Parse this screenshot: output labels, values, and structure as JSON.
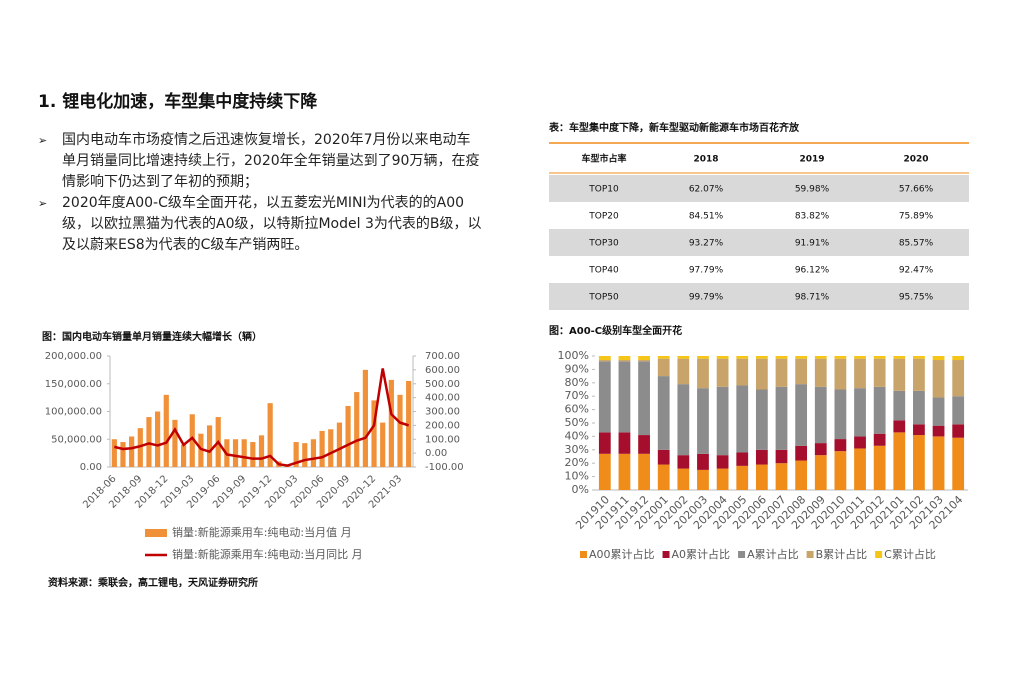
{
  "header": {
    "title": "1. 锂电化加速，车型集中度持续下降"
  },
  "bullets": [
    "国内电动车市场疫情之后迅速恢复增长，2020年7月份以来电动车单月销量同比增速持续上行，2020年全年销量达到了90万辆，在疫情影响下仍达到了年初的预期；",
    "2020年度A00-C级车全面开花，以五菱宏光MINI为代表的的A00级，以欧拉黑猫为代表的A0级，以特斯拉Model 3为代表的B级，以及以蔚来ES8为代表的C级车产销两旺。"
  ],
  "table": {
    "title": "表：车型集中度下降，新车型驱动新能源车市场百花齐放",
    "columns": [
      "车型市占率",
      "2018",
      "2019",
      "2020"
    ],
    "rows": [
      [
        "TOP10",
        "62.07%",
        "59.98%",
        "57.66%"
      ],
      [
        "TOP20",
        "84.51%",
        "83.82%",
        "75.89%"
      ],
      [
        "TOP30",
        "93.27%",
        "91.91%",
        "85.57%"
      ],
      [
        "TOP40",
        "97.79%",
        "96.12%",
        "92.47%"
      ],
      [
        "TOP50",
        "99.79%",
        "98.71%",
        "95.75%"
      ]
    ]
  },
  "chart_data": [
    {
      "type": "combo",
      "title": "图：国内电动车销量单月销量连续大幅增长（辆）",
      "categories": [
        "2018-06",
        null,
        null,
        "2018-09",
        null,
        null,
        "2018-12",
        null,
        null,
        "2019-03",
        null,
        null,
        "2019-06",
        null,
        null,
        "2019-09",
        null,
        null,
        "2019-12",
        null,
        null,
        "2020-03",
        null,
        null,
        "2020-06",
        null,
        null,
        "2020-09",
        null,
        null,
        "2020-12",
        null,
        null,
        "2021-03",
        null
      ],
      "series": [
        {
          "name": "销量:新能源乘用车:纯电动:当月值 月",
          "type": "bar",
          "color": "#f0913a",
          "values": [
            50000,
            45000,
            55000,
            70000,
            90000,
            100000,
            130000,
            85000,
            40000,
            95000,
            60000,
            75000,
            90000,
            50000,
            50000,
            50000,
            45000,
            57000,
            115000,
            10000,
            3000,
            45000,
            43000,
            50000,
            65000,
            68000,
            80000,
            110000,
            135000,
            175000,
            120000,
            80000,
            157000,
            130000,
            155000
          ]
        },
        {
          "name": "销量:新能源乘用车:纯电动:当月同比 月",
          "type": "line",
          "axis": "y2",
          "color": "#c00000",
          "values": [
            45,
            30,
            35,
            50,
            70,
            55,
            75,
            170,
            60,
            110,
            30,
            10,
            80,
            -10,
            -20,
            -30,
            -40,
            -40,
            -20,
            -80,
            -90,
            -70,
            -50,
            -40,
            -30,
            0,
            30,
            60,
            90,
            110,
            200,
            610,
            280,
            220,
            200
          ]
        }
      ],
      "ylim": [
        0,
        200000
      ],
      "yticks": [
        {
          "value": 0,
          "label": "0.00"
        },
        {
          "value": 50000,
          "label": "50,000.00"
        },
        {
          "value": 100000,
          "label": "100,000.00"
        },
        {
          "value": 150000,
          "label": "150,000.00"
        },
        {
          "value": 200000,
          "label": "200,000.00"
        }
      ],
      "y2lim": [
        -100,
        700
      ],
      "y2ticks": [
        {
          "value": -100,
          "label": "-100.00"
        },
        {
          "value": 0,
          "label": "0.00"
        },
        {
          "value": 100,
          "label": "100.00"
        },
        {
          "value": 200,
          "label": "200.00"
        },
        {
          "value": 300,
          "label": "300.00"
        },
        {
          "value": 400,
          "label": "400.00"
        },
        {
          "value": 500,
          "label": "500.00"
        },
        {
          "value": 600,
          "label": "600.00"
        },
        {
          "value": 700,
          "label": "700.00"
        }
      ]
    },
    {
      "type": "stacked_bar",
      "title": "图：A00-C级别车型全面开花",
      "categories": [
        "201910",
        "201911",
        "201912",
        "202001",
        "202002",
        "202003",
        "202004",
        "202005",
        "202006",
        "202007",
        "202008",
        "202009",
        "202010",
        "202011",
        "202012",
        "202101",
        "202102",
        "202103",
        "202104"
      ],
      "series": [
        {
          "name": "A00累计占比",
          "color": "#f08c1a",
          "values": [
            27,
            27,
            27,
            19,
            16,
            15,
            16,
            18,
            19,
            20,
            22,
            26,
            29,
            31,
            33,
            43,
            41,
            40,
            39
          ]
        },
        {
          "name": "A0累计占比",
          "color": "#a50f2d",
          "values": [
            16,
            16,
            14,
            11,
            10,
            12,
            10,
            10,
            11,
            10,
            11,
            9,
            9,
            9,
            9,
            9,
            8,
            8,
            10
          ]
        },
        {
          "name": "A累计占比",
          "color": "#8c8c8c",
          "values": [
            53,
            53,
            55,
            55,
            53,
            49,
            51,
            50,
            45,
            47,
            46,
            42,
            37,
            36,
            35,
            22,
            25,
            21,
            21
          ]
        },
        {
          "name": "B累计占比",
          "color": "#c9a46a",
          "values": [
            1,
            1,
            1,
            13,
            19,
            22,
            21,
            20,
            23,
            21,
            19,
            21,
            23,
            22,
            21,
            24,
            24,
            28,
            27
          ]
        },
        {
          "name": "C累计占比",
          "color": "#f5c518",
          "values": [
            3,
            3,
            3,
            2,
            2,
            2,
            2,
            2,
            2,
            2,
            2,
            2,
            2,
            2,
            2,
            2,
            2,
            3,
            3
          ]
        }
      ],
      "ylim": [
        0,
        100
      ],
      "yticks": [
        {
          "value": 0,
          "label": "0%"
        },
        {
          "value": 10,
          "label": "10%"
        },
        {
          "value": 20,
          "label": "20%"
        },
        {
          "value": 30,
          "label": "30%"
        },
        {
          "value": 40,
          "label": "40%"
        },
        {
          "value": 50,
          "label": "50%"
        },
        {
          "value": 60,
          "label": "60%"
        },
        {
          "value": 70,
          "label": "70%"
        },
        {
          "value": 80,
          "label": "80%"
        },
        {
          "value": 90,
          "label": "90%"
        },
        {
          "value": 100,
          "label": "100%"
        }
      ]
    }
  ],
  "source": "资料来源：乘联会，高工锂电，天风证券研究所"
}
